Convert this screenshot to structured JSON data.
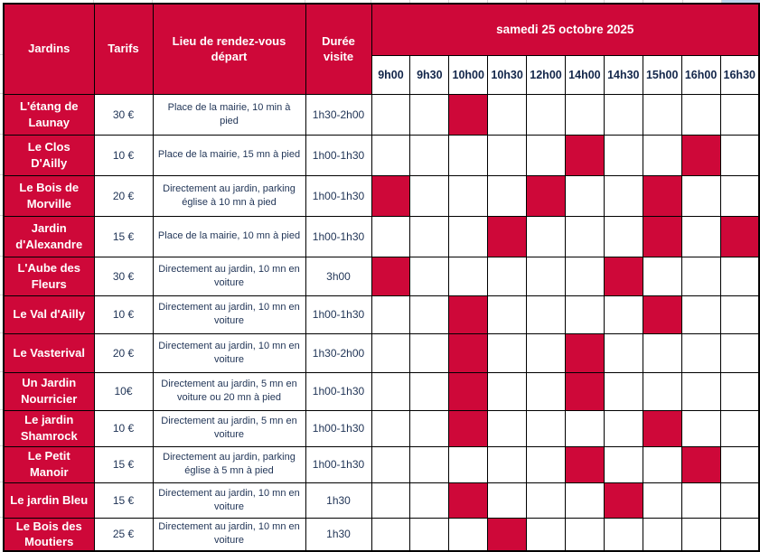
{
  "table": {
    "headers": {
      "jardins": "Jardins",
      "tarifs": "Tarifs",
      "lieu": "Lieu de rendez-vous départ",
      "duree": "Durée visite"
    },
    "date_header": "samedi 25 octobre 2025",
    "time_slots": [
      "9h00",
      "9h30",
      "10h00",
      "10h30",
      "12h00",
      "14h00",
      "14h30",
      "15h00",
      "16h00",
      "16h30"
    ],
    "rows": [
      {
        "jardin": "L'étang de Launay",
        "tarif": "30 €",
        "lieu": "Place de la mairie, 10 min à pied",
        "duree": "1h30-2h00",
        "filled": [
          "10h00"
        ]
      },
      {
        "jardin": "Le Clos D'Ailly",
        "tarif": "10 €",
        "lieu": "Place de la mairie, 15 mn à pied",
        "duree": "1h00-1h30",
        "filled": [
          "14h00",
          "16h00"
        ]
      },
      {
        "jardin": "Le Bois de Morville",
        "tarif": "20 €",
        "lieu": "Directement au jardin, parking église à 10 mn à pied",
        "duree": "1h00-1h30",
        "filled": [
          "9h00",
          "12h00",
          "15h00"
        ]
      },
      {
        "jardin": "Jardin d'Alexandre",
        "tarif": "15 €",
        "lieu": "Place de la mairie, 10 mn à pied",
        "duree": "1h00-1h30",
        "filled": [
          "10h30",
          "15h00",
          "16h30"
        ]
      },
      {
        "jardin": "L'Aube des Fleurs",
        "tarif": "30 €",
        "lieu": "Directement au jardin, 10 mn en voiture",
        "duree": "3h00",
        "filled": [
          "9h00",
          "14h30"
        ]
      },
      {
        "jardin": "Le Val d'Ailly",
        "tarif": "10 €",
        "lieu": "Directement au jardin, 10 mn en voiture",
        "duree": "1h00-1h30",
        "filled": [
          "10h00",
          "15h00"
        ]
      },
      {
        "jardin": "Le Vasterival",
        "tarif": "20 €",
        "lieu": "Directement au jardin, 10 mn en voiture",
        "duree": "1h30-2h00",
        "filled": [
          "10h00",
          "14h00"
        ]
      },
      {
        "jardin": "Un Jardin Nourricier",
        "tarif": "10€",
        "lieu": "Directement au jardin, 5 mn en voiture ou 20 mn à pied",
        "duree": "1h00-1h30",
        "filled": [
          "10h00",
          "14h00"
        ]
      },
      {
        "jardin": "Le jardin Shamrock",
        "tarif": "10 €",
        "lieu": "Directement au jardin, 5 mn en voiture",
        "duree": "1h00-1h30",
        "filled": [
          "10h00",
          "15h00"
        ]
      },
      {
        "jardin": "Le Petit Manoir",
        "tarif": "15 €",
        "lieu": "Directement au jardin, parking église à 5 mn à pied",
        "duree": "1h00-1h30",
        "filled": [
          "14h00",
          "16h00"
        ]
      },
      {
        "jardin": "Le jardin Bleu",
        "tarif": "15 €",
        "lieu": "Directement au jardin, 10 mn en voiture",
        "duree": "1h30",
        "filled": [
          "10h00",
          "14h30"
        ]
      },
      {
        "jardin": "Le Bois des Moutiers",
        "tarif": "25 €",
        "lieu": "Directement au jardin, 10 mn en voiture",
        "duree": "1h30",
        "filled": [
          "10h30"
        ]
      }
    ]
  },
  "colors": {
    "accent_red": "#ce0839",
    "text_navy": "#1f3355",
    "selected_cell_blue": "#bdd7ee"
  }
}
